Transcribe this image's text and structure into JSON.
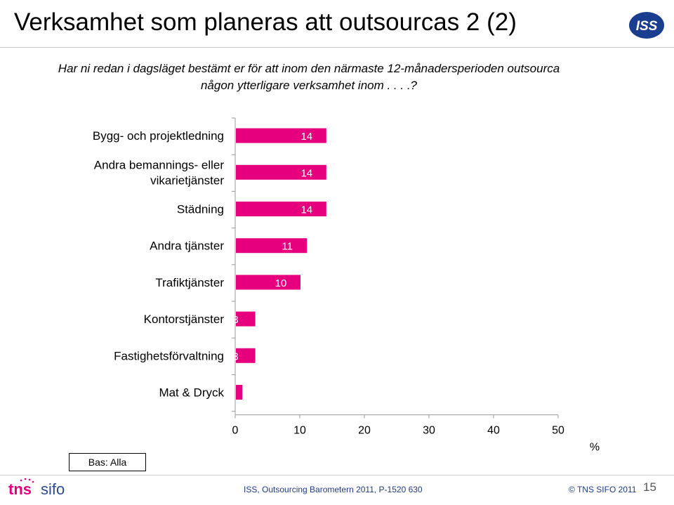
{
  "slide": {
    "title": "Verksamhet som planeras att outsourcas 2 (2)",
    "question_line1": "Har ni redan i dagsläget bestämt er för att inom den närmaste 12-månadersperioden outsourca",
    "question_line2": "någon ytterligare verksamhet inom . . . .?",
    "basis": "Bas: Alla",
    "source": "ISS, Outsourcing Barometern 2011, P-1520 630",
    "copyright": "© TNS SIFO 2011",
    "page_number": "15",
    "logo_iss_text": "ISS",
    "logo_tns_text": "tns",
    "logo_sifo_text": "sifo"
  },
  "colors": {
    "bar": "#e6007e",
    "bar_label": "#ffffff",
    "iss_blue": "#1a3d8f",
    "tns_pink": "#e6007e",
    "tns_blue": "#2a4b9b"
  },
  "chart_data": {
    "type": "bar",
    "orientation": "horizontal",
    "categories": [
      [
        "Bygg- och projektledning"
      ],
      [
        "Andra  bemannings- eller",
        "vikarietjänster"
      ],
      [
        "Städning"
      ],
      [
        "Andra tjänster"
      ],
      [
        "Trafiktjänster"
      ],
      [
        "Kontorstjänster"
      ],
      [
        "Fastighetsförvaltning"
      ],
      [
        "Mat & Dryck"
      ]
    ],
    "values": [
      14,
      14,
      14,
      11,
      10,
      3,
      3,
      1
    ],
    "data_labels": [
      "14",
      "14",
      "14",
      "11",
      "10",
      "3",
      "3",
      ""
    ],
    "xlim": [
      0,
      50
    ],
    "xticks": [
      "0",
      "10",
      "20",
      "30",
      "40",
      "50"
    ],
    "xticks_values": [
      0,
      10,
      20,
      30,
      40,
      50
    ],
    "unit": "%",
    "grid": false
  }
}
